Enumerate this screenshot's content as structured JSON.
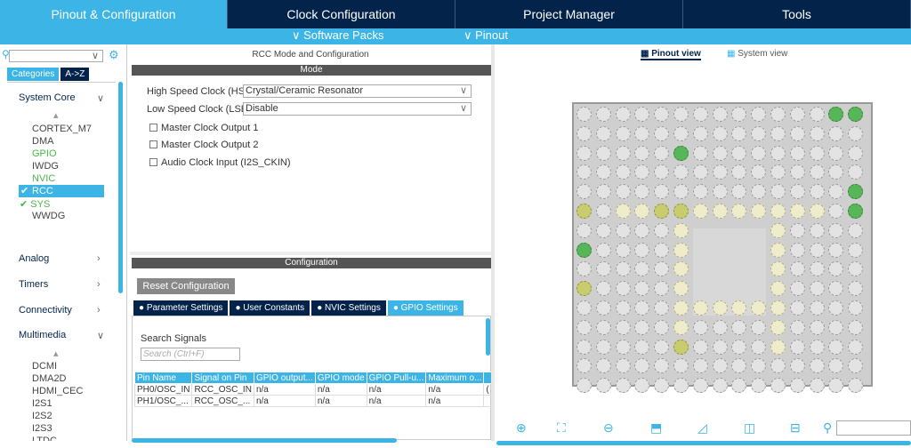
{
  "tabs": [
    "Pinout & Configuration",
    "Clock Configuration",
    "Project Manager",
    "Tools"
  ],
  "subbar": {
    "software_packs": "∨ Software Packs",
    "pinout": "∨ Pinout"
  },
  "left": {
    "categories_tab": "Categories",
    "az_tab": "A->Z",
    "system_core": "System Core",
    "system_core_items": [
      "CORTEX_M7",
      "DMA",
      "GPIO",
      "IWDG",
      "NVIC",
      "RCC",
      "SYS",
      "WWDG"
    ],
    "analog": "Analog",
    "timers": "Timers",
    "connectivity": "Connectivity",
    "multimedia": "Multimedia",
    "multimedia_items": [
      "DCMI",
      "DMA2D",
      "HDMI_CEC",
      "I2S1",
      "I2S2",
      "I2S3",
      "LTDC"
    ]
  },
  "mid": {
    "title": "RCC Mode and Configuration",
    "mode": "Mode",
    "hse_label": "High Speed Clock (HSE)",
    "hse_value": "Crystal/Ceramic Resonator",
    "lse_label": "Low Speed Clock (LSE)",
    "lse_value": "Disable",
    "mco1": "Master Clock Output 1",
    "mco2": "Master Clock Output 2",
    "audio": "Audio Clock Input (I2S_CKIN)",
    "configuration": "Configuration",
    "reset": "Reset Configuration",
    "cfg_tabs": [
      "Parameter Settings",
      "User Constants",
      "NVIC Settings",
      "GPIO Settings"
    ],
    "search_signals": "Search Signals",
    "search_placeholder": "Search (Ctrl+F)",
    "columns": [
      "Pin Name",
      "Signal on Pin",
      "GPIO output...",
      "GPIO mode",
      "GPIO Pull-u...",
      "Maximum o...",
      ""
    ],
    "rows": [
      [
        "PH0/OSC_IN",
        "RCC_OSC_IN",
        "n/a",
        "n/a",
        "n/a",
        "n/a",
        "("
      ],
      [
        "PH1/OSC_...",
        "RCC_OSC_...",
        "n/a",
        "n/a",
        "n/a",
        "n/a",
        ""
      ]
    ]
  },
  "right": {
    "pinout_view": "Pinout view",
    "system_view": "System view"
  },
  "colors": {
    "navy": "#03234b",
    "accent": "#3cb4e6",
    "green": "#57b657"
  }
}
